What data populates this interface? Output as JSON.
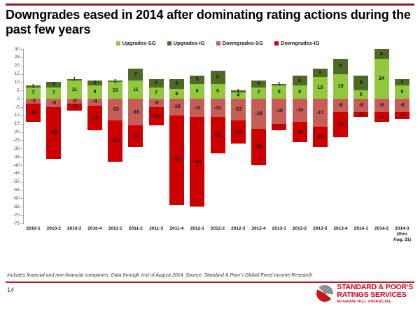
{
  "title": "Downgrades eased in 2014 after dominating rating actions during the past few years",
  "legend": [
    {
      "label": "Upgrades-SG",
      "color": "#92c83e"
    },
    {
      "label": "Upgrades-IG",
      "color": "#4e6b26"
    },
    {
      "label": "Downgrades-SG",
      "color": "#c65d57"
    },
    {
      "label": "Downgrades-IG",
      "color": "#cc0000"
    }
  ],
  "chart_data": {
    "type": "bar",
    "stacked": true,
    "categories": [
      "2010-1",
      "2010-2",
      "2010-3",
      "2010-4",
      "2011-1",
      "2011-2",
      "2011-3",
      "2011-4",
      "2012-1",
      "2012-2",
      "2012-3",
      "2012-4",
      "2013-1",
      "2013-2",
      "2013-3",
      "2013-4",
      "2014-1",
      "2014-2",
      "2014-3"
    ],
    "category_notes": {
      "18": "(thro\nAug. 31)"
    },
    "series": [
      {
        "name": "Upgrades-SG",
        "color": "#92c83e",
        "values": [
          7,
          7,
          11,
          8,
          10,
          11,
          7,
          6,
          9,
          9,
          4,
          7,
          8,
          8,
          13,
          15,
          5,
          24,
          8
        ]
      },
      {
        "name": "Upgrades-IG",
        "color": "#4e6b26",
        "values": [
          1,
          3,
          1,
          3,
          1,
          7,
          5,
          6,
          5,
          8,
          1,
          4,
          1,
          6,
          5,
          9,
          9,
          6,
          4
        ]
      },
      {
        "name": "Downgrades-SG",
        "color": "#c65d57",
        "values": [
          -3,
          -5,
          -3,
          -4,
          -13,
          -16,
          -5,
          -10,
          -11,
          -11,
          -13,
          -18,
          -15,
          -14,
          -17,
          -8,
          -8,
          -8,
          -8
        ]
      },
      {
        "name": "Downgrades-IG",
        "color": "#cc0000",
        "values": [
          -11,
          -31,
          -4,
          -15,
          -25,
          -13,
          -11,
          -54,
          -54,
          -22,
          -14,
          -22,
          -4,
          -12,
          -12,
          -15,
          -3,
          -6,
          -4
        ]
      }
    ],
    "ylim": [
      -75,
      30
    ],
    "ytick_step": 5,
    "grid": false,
    "legend_position": "top",
    "xlabel": "",
    "ylabel": ""
  },
  "footer": {
    "note": "Includes financial and non-financial companies. Data through end of August 2014. Source: Standard & Poor's Global Fixed Income Research"
  },
  "page_number": "14",
  "logo": {
    "line1": "STANDARD & POOR'S",
    "line2": "RATINGS SERVICES",
    "line3": "McGRAW HILL FINANCIAL"
  }
}
